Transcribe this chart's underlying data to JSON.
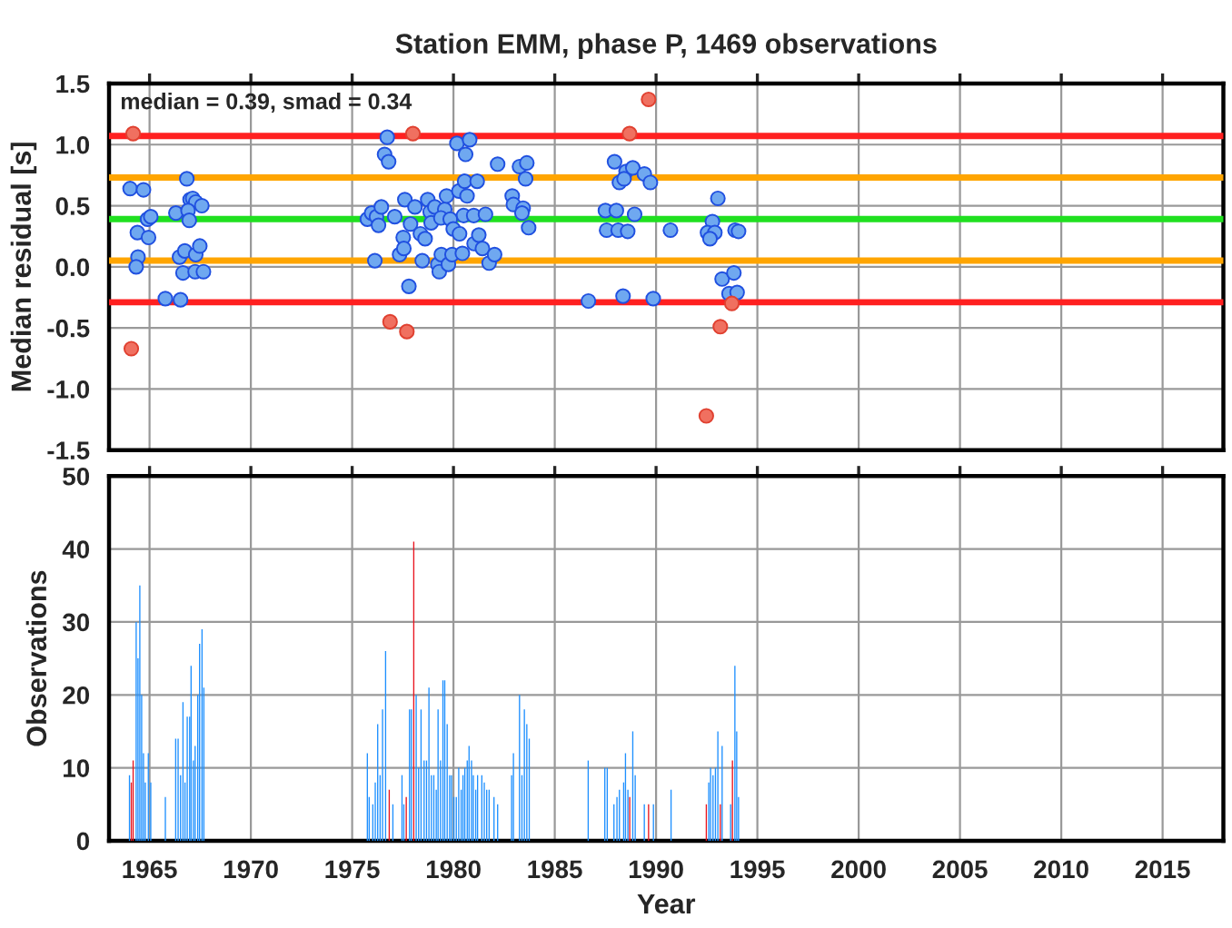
{
  "chart_data": [
    {
      "type": "scatter",
      "title": "Station EMM, phase P, 1469 observations",
      "ylabel": "Median residual [s]",
      "annotations": [
        "median = 0.39, smad = 0.34"
      ],
      "xlim": [
        1963,
        2018
      ],
      "xticks": [
        {
          "value": 1965,
          "label": null
        },
        {
          "value": 1970,
          "label": null
        },
        {
          "value": 1975,
          "label": null
        },
        {
          "value": 1980,
          "label": null
        },
        {
          "value": 1985,
          "label": null
        },
        {
          "value": 1990,
          "label": null
        },
        {
          "value": 1995,
          "label": null
        },
        {
          "value": 2000,
          "label": null
        },
        {
          "value": 2005,
          "label": null
        },
        {
          "value": 2010,
          "label": null
        },
        {
          "value": 2015,
          "label": null
        }
      ],
      "ylim": [
        -1.5,
        1.5
      ],
      "yticks": [
        {
          "value": -1.5,
          "label": "-1.5"
        },
        {
          "value": -1,
          "label": "-1.0"
        },
        {
          "value": -0.5,
          "label": "-0.5"
        },
        {
          "value": 0,
          "label": "0.0"
        },
        {
          "value": 0.5,
          "label": "0.5"
        },
        {
          "value": 1,
          "label": "1.0"
        },
        {
          "value": 1.5,
          "label": "1.5"
        }
      ],
      "grid": true,
      "tick_labels": "y",
      "marker": "circle",
      "ref_lines": [
        {
          "axis": "y",
          "value": 1.07,
          "color": "#ff2020"
        },
        {
          "axis": "y",
          "value": 0.73,
          "color": "#ffa500"
        },
        {
          "axis": "y",
          "value": 0.39,
          "color": "#20e020"
        },
        {
          "axis": "y",
          "value": 0.05,
          "color": "#ffa500"
        },
        {
          "axis": "y",
          "value": -0.29,
          "color": "#ff2020"
        }
      ],
      "series": [
        {
          "color": "#6fa8f0",
          "x": [
            1964.04,
            1964.7,
            1964.4,
            1964.95,
            1964.9,
            1965.06,
            1964.43,
            1964.34,
            1965.78,
            1966.53,
            1966.3,
            1966.84,
            1966.48,
            1966.74,
            1966.65,
            1967.0,
            1967.13,
            1967.28,
            1967.58,
            1966.9,
            1966.96,
            1967.28,
            1967.48,
            1967.25,
            1967.66,
            1976.73,
            1976.6,
            1976.8,
            1975.75,
            1975.96,
            1976.2,
            1976.44,
            1976.3,
            1976.12,
            1977.1,
            1977.6,
            1977.52,
            1977.8,
            1977.88,
            1978.1,
            1977.34,
            1977.55,
            1978.37,
            1978.46,
            1978.6,
            1978.73,
            1978.85,
            1978.9,
            1979.08,
            1979.23,
            1979.3,
            1979.4,
            1979.57,
            1979.66,
            1979.38,
            1979.75,
            1979.84,
            1979.93,
            1979.99,
            1980.17,
            1980.3,
            1980.27,
            1980.44,
            1980.5,
            1980.55,
            1980.67,
            1980.6,
            1980.8,
            1981.0,
            1981.02,
            1981.17,
            1981.25,
            1981.43,
            1981.58,
            1981.76,
            1982.03,
            1982.18,
            1982.9,
            1982.96,
            1983.26,
            1983.62,
            1983.56,
            1983.44,
            1983.38,
            1983.71,
            1987.95,
            1988.52,
            1988.85,
            1989.42,
            1989.72,
            1988.19,
            1988.42,
            1987.5,
            1988.04,
            1988.94,
            1987.56,
            1988.13,
            1988.6,
            1990.71,
            1993.05,
            1992.78,
            1992.54,
            1992.9,
            1992.66,
            1993.9,
            1994.07,
            1993.26,
            1993.84,
            1993.6,
            1994.0,
            1986.66,
            1988.37,
            1989.86
          ],
          "values": [
            0.64,
            0.63,
            0.28,
            0.24,
            0.39,
            0.41,
            0.08,
            0.0,
            -0.26,
            -0.27,
            0.44,
            0.72,
            0.08,
            0.13,
            -0.05,
            0.55,
            0.56,
            0.53,
            0.5,
            0.46,
            0.38,
            0.1,
            0.17,
            -0.04,
            -0.04,
            1.06,
            0.92,
            0.86,
            0.39,
            0.44,
            0.41,
            0.49,
            0.34,
            0.05,
            0.41,
            0.55,
            0.24,
            -0.16,
            0.35,
            0.49,
            0.1,
            0.15,
            0.27,
            0.05,
            0.23,
            0.55,
            0.45,
            0.36,
            0.49,
            0.02,
            -0.04,
            0.1,
            0.47,
            0.58,
            0.4,
            0.02,
            0.39,
            0.1,
            0.31,
            1.01,
            0.27,
            0.62,
            0.11,
            0.42,
            0.7,
            0.58,
            0.92,
            1.04,
            0.42,
            0.19,
            0.7,
            0.26,
            0.15,
            0.43,
            0.03,
            0.1,
            0.84,
            0.58,
            0.51,
            0.82,
            0.85,
            0.72,
            0.48,
            0.44,
            0.32,
            0.86,
            0.78,
            0.81,
            0.76,
            0.69,
            0.69,
            0.72,
            0.46,
            0.46,
            0.43,
            0.3,
            0.3,
            0.29,
            0.3,
            0.56,
            0.37,
            0.28,
            0.28,
            0.23,
            0.3,
            0.29,
            -0.1,
            -0.05,
            -0.22,
            -0.21,
            -0.28,
            -0.24,
            -0.26
          ]
        },
        {
          "color": "#f07060",
          "x": [
            1964.19,
            1964.1,
            1976.87,
            1977.7,
            1978.0,
            1989.63,
            1988.69,
            1992.48,
            1993.17,
            1993.74
          ],
          "values": [
            1.09,
            -0.67,
            -0.45,
            -0.53,
            1.09,
            1.37,
            1.09,
            -1.22,
            -0.49,
            -0.3
          ]
        }
      ]
    },
    {
      "type": "bar",
      "xlabel": "Year",
      "ylabel": "Observations",
      "xlim": [
        1963,
        2018
      ],
      "xticks": [
        1965,
        1970,
        1975,
        1980,
        1985,
        1990,
        1995,
        2000,
        2005,
        2010,
        2015
      ],
      "ylim": [
        0,
        50
      ],
      "yticks": [
        0,
        10,
        20,
        30,
        40,
        50
      ],
      "grid": true,
      "series": [
        {
          "color": "#1e90ff",
          "x": [
            1964.01,
            1964.34,
            1964.43,
            1964.52,
            1964.61,
            1964.7,
            1964.79,
            1964.94,
            1965.06,
            1965.78,
            1966.29,
            1966.41,
            1966.53,
            1966.65,
            1966.75,
            1966.86,
            1966.98,
            1967.05,
            1967.16,
            1967.25,
            1967.38,
            1967.47,
            1967.59,
            1967.68,
            1975.75,
            1975.84,
            1976.02,
            1976.14,
            1976.26,
            1976.38,
            1976.5,
            1976.65,
            1977.01,
            1977.46,
            1977.55,
            1977.83,
            1977.92,
            1978.16,
            1978.28,
            1978.4,
            1978.55,
            1978.67,
            1978.79,
            1978.91,
            1979.03,
            1979.15,
            1979.24,
            1979.36,
            1979.48,
            1979.57,
            1979.69,
            1979.81,
            1979.9,
            1980.02,
            1980.14,
            1980.26,
            1980.38,
            1980.47,
            1980.56,
            1980.68,
            1980.77,
            1980.89,
            1980.98,
            1981.1,
            1981.19,
            1981.4,
            1981.52,
            1981.64,
            1981.76,
            1982.0,
            1982.18,
            1982.87,
            1982.96,
            1983.26,
            1983.38,
            1983.5,
            1983.62,
            1983.74,
            1986.65,
            1987.47,
            1987.59,
            1987.92,
            1988.07,
            1988.19,
            1988.4,
            1988.49,
            1988.61,
            1988.85,
            1988.97,
            1989.42,
            1989.87,
            1990.74,
            1992.6,
            1992.69,
            1992.81,
            1992.93,
            1993.05,
            1993.26,
            1993.68,
            1993.89,
            1993.98,
            1994.07
          ],
          "values": [
            9,
            30,
            25,
            35,
            20,
            12,
            8,
            12,
            8,
            6,
            14,
            14,
            9,
            19,
            8,
            17,
            17,
            24,
            11,
            13,
            20,
            27,
            29,
            21,
            12,
            6,
            5,
            8,
            16,
            9,
            18,
            26,
            5,
            9,
            5,
            18,
            18,
            20,
            10,
            18,
            11,
            11,
            21,
            9,
            9,
            7,
            18,
            11,
            22,
            22,
            16,
            9,
            9,
            6,
            6,
            10,
            7,
            9,
            10,
            11,
            13,
            11,
            9,
            7,
            9,
            9,
            8,
            7,
            7,
            6,
            5,
            9,
            12,
            20,
            9,
            18,
            16,
            14,
            11,
            10,
            10,
            5,
            6,
            7,
            8,
            12,
            7,
            15,
            9,
            5,
            5,
            7,
            8,
            10,
            9,
            10,
            15,
            13,
            5,
            24,
            15,
            6
          ]
        },
        {
          "color": "#e8141e",
          "x": [
            1964.1,
            1964.19,
            1976.83,
            1977.67,
            1978.04,
            1988.7,
            1989.63,
            1992.48,
            1993.17,
            1993.77
          ],
          "values": [
            8,
            11,
            7,
            6,
            41,
            6,
            5,
            5,
            5,
            11
          ]
        }
      ]
    }
  ]
}
